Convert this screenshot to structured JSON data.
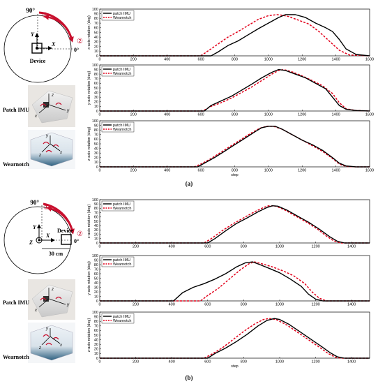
{
  "panels": [
    {
      "label": "(a)",
      "diagram": {
        "angle_top": "90°",
        "angle_right": "0°",
        "step1": "①",
        "step2": "②",
        "axis_y": "Y",
        "axis_x": "X",
        "axis_z": "",
        "device": "Device",
        "distance": ""
      },
      "photo_labels": {
        "patch": "Patch IMU",
        "wearnotch": "Wearnotch",
        "x": "x",
        "y": "y",
        "z": "z"
      }
    },
    {
      "label": "(b)",
      "diagram": {
        "angle_top": "90°",
        "angle_right": "0°",
        "step1": "①",
        "step2": "②",
        "axis_y": "Y",
        "axis_x": "X",
        "axis_z": "Z",
        "device": "Device",
        "distance": "30 cm"
      },
      "photo_labels": {
        "patch": "Patch IMU",
        "wearnotch": "Wearnotch",
        "x": "x",
        "y": "y",
        "z": "z"
      }
    }
  ],
  "colors": {
    "patch": "#000000",
    "wearnotch": "#e2001a",
    "arrow": "#c8102e",
    "axis": "#000000"
  },
  "chart_data": [
    {
      "type": "line",
      "panel": "(a)",
      "xlabel": "",
      "ylabel": "x-axis rotation (deg)",
      "xlim": [
        0,
        1600
      ],
      "ylim": [
        0,
        100
      ],
      "xticks": [
        "0",
        "200",
        "400",
        "600",
        "800",
        "1000",
        "1200",
        "1400",
        "1600"
      ],
      "yticks": [
        "0",
        "10",
        "20",
        "30",
        "40",
        "50",
        "60",
        "70",
        "80",
        "90",
        "100"
      ],
      "legend": "top-left",
      "series": [
        {
          "name": "patch IMU",
          "style": "solid",
          "x": [
            0,
            660,
            700,
            760,
            820,
            880,
            940,
            1000,
            1060,
            1100,
            1160,
            1220,
            1280,
            1340,
            1380,
            1420,
            1460,
            1520,
            1600
          ],
          "y": [
            0,
            0,
            8,
            22,
            32,
            45,
            58,
            70,
            82,
            88,
            88,
            82,
            70,
            60,
            52,
            35,
            15,
            3,
            0
          ]
        },
        {
          "name": "Wearnotch",
          "style": "dashed",
          "x": [
            0,
            600,
            640,
            700,
            760,
            820,
            880,
            940,
            1000,
            1050,
            1080,
            1120,
            1180,
            1240,
            1300,
            1360,
            1420,
            1480,
            1600
          ],
          "y": [
            0,
            0,
            10,
            25,
            40,
            52,
            65,
            78,
            86,
            88,
            87,
            84,
            76,
            68,
            52,
            32,
            12,
            2,
            0
          ]
        }
      ]
    },
    {
      "type": "line",
      "panel": "(a)",
      "xlabel": "",
      "ylabel": "y-axis rotation (deg)",
      "xlim": [
        0,
        1600
      ],
      "ylim": [
        0,
        100
      ],
      "xticks": [
        "0",
        "200",
        "400",
        "600",
        "800",
        "1000",
        "1200",
        "1400",
        "1600"
      ],
      "yticks": [
        "0",
        "10",
        "20",
        "30",
        "40",
        "50",
        "60",
        "70",
        "80",
        "90",
        "100"
      ],
      "legend": "top-left",
      "series": [
        {
          "name": "patch IMU",
          "style": "solid",
          "x": [
            0,
            620,
            660,
            720,
            780,
            840,
            900,
            960,
            1020,
            1060,
            1100,
            1160,
            1220,
            1280,
            1340,
            1380,
            1420,
            1460,
            1520,
            1600
          ],
          "y": [
            0,
            0,
            12,
            22,
            32,
            45,
            58,
            72,
            84,
            90,
            88,
            80,
            72,
            60,
            48,
            30,
            12,
            4,
            1,
            0
          ]
        },
        {
          "name": "Wearnotch",
          "style": "dashed",
          "x": [
            0,
            610,
            660,
            720,
            780,
            840,
            900,
            960,
            1020,
            1060,
            1090,
            1140,
            1200,
            1260,
            1320,
            1380,
            1420,
            1460,
            1520,
            1600
          ],
          "y": [
            0,
            0,
            10,
            18,
            28,
            40,
            52,
            66,
            80,
            88,
            90,
            85,
            76,
            66,
            55,
            38,
            18,
            5,
            1,
            0
          ]
        }
      ]
    },
    {
      "type": "line",
      "panel": "(a)",
      "xlabel": "step",
      "ylabel": "z-axis rotation (deg)",
      "xlim": [
        0,
        1600
      ],
      "ylim": [
        0,
        100
      ],
      "xticks": [
        "0",
        "200",
        "400",
        "600",
        "800",
        "1000",
        "1200",
        "1400",
        "1600"
      ],
      "yticks": [
        "0",
        "10",
        "20",
        "30",
        "40",
        "50",
        "60",
        "70",
        "80",
        "90",
        "100"
      ],
      "legend": "top-left",
      "series": [
        {
          "name": "patch IMU",
          "style": "solid",
          "x": [
            0,
            580,
            620,
            680,
            740,
            800,
            860,
            920,
            960,
            1000,
            1040,
            1080,
            1140,
            1200,
            1260,
            1320,
            1380,
            1420,
            1460,
            1520,
            1600
          ],
          "y": [
            0,
            0,
            8,
            20,
            34,
            48,
            62,
            76,
            85,
            88,
            88,
            82,
            70,
            58,
            48,
            36,
            20,
            8,
            2,
            0,
            0
          ]
        },
        {
          "name": "Wearnotch",
          "style": "dashed",
          "x": [
            0,
            560,
            600,
            660,
            720,
            780,
            840,
            900,
            950,
            990,
            1030,
            1080,
            1140,
            1200,
            1260,
            1320,
            1380,
            1420,
            1460,
            1520,
            1600
          ],
          "y": [
            0,
            0,
            6,
            18,
            32,
            46,
            60,
            74,
            84,
            88,
            88,
            82,
            70,
            58,
            46,
            34,
            18,
            6,
            1,
            0,
            0
          ]
        }
      ]
    },
    {
      "type": "line",
      "panel": "(b)",
      "xlabel": "",
      "ylabel": "x-axis rotation (deg)",
      "xlim": [
        0,
        1500
      ],
      "ylim": [
        0,
        100
      ],
      "xticks": [
        "0",
        "200",
        "400",
        "600",
        "800",
        "1000",
        "1200",
        "1400"
      ],
      "yticks": [
        "0",
        "10",
        "20",
        "30",
        "40",
        "50",
        "60",
        "70",
        "80",
        "90",
        "100"
      ],
      "legend": "top-left",
      "series": [
        {
          "name": "patch IMU",
          "style": "solid",
          "x": [
            0,
            600,
            640,
            700,
            760,
            820,
            880,
            930,
            960,
            990,
            1040,
            1100,
            1160,
            1220,
            1280,
            1320,
            1360,
            1500
          ],
          "y": [
            0,
            0,
            10,
            28,
            45,
            58,
            72,
            82,
            86,
            85,
            76,
            62,
            48,
            32,
            14,
            4,
            0,
            0
          ]
        },
        {
          "name": "Wearnotch",
          "style": "dashed",
          "x": [
            0,
            580,
            620,
            680,
            740,
            800,
            860,
            910,
            940,
            980,
            1030,
            1090,
            1150,
            1210,
            1260,
            1300,
            1340,
            1500
          ],
          "y": [
            0,
            0,
            10,
            28,
            44,
            58,
            72,
            82,
            86,
            85,
            76,
            62,
            48,
            32,
            16,
            5,
            0,
            0
          ]
        }
      ]
    },
    {
      "type": "line",
      "panel": "(b)",
      "xlabel": "",
      "ylabel": "y-axis rotation (deg)",
      "xlim": [
        0,
        1500
      ],
      "ylim": [
        0,
        100
      ],
      "xticks": [
        "0",
        "200",
        "400",
        "600",
        "800",
        "1000",
        "1200",
        "1400"
      ],
      "yticks": [
        "0",
        "10",
        "20",
        "30",
        "40",
        "50",
        "60",
        "70",
        "80",
        "90",
        "100"
      ],
      "legend": "top-left",
      "series": [
        {
          "name": "patch IMU",
          "style": "solid",
          "x": [
            0,
            410,
            460,
            520,
            580,
            640,
            700,
            760,
            810,
            850,
            890,
            940,
            1000,
            1060,
            1120,
            1160,
            1200,
            1240,
            1500
          ],
          "y": [
            0,
            0,
            18,
            30,
            38,
            48,
            60,
            75,
            84,
            86,
            80,
            72,
            62,
            48,
            32,
            15,
            4,
            0,
            0
          ]
        },
        {
          "name": "Wearnotch",
          "style": "dashed",
          "x": [
            0,
            560,
            600,
            660,
            720,
            780,
            830,
            860,
            900,
            960,
            1020,
            1080,
            1140,
            1180,
            1220,
            1260,
            1500
          ],
          "y": [
            0,
            0,
            12,
            28,
            48,
            68,
            82,
            86,
            82,
            75,
            66,
            55,
            38,
            20,
            6,
            0,
            0
          ]
        }
      ]
    },
    {
      "type": "line",
      "panel": "(b)",
      "xlabel": "step",
      "ylabel": "z-axis rotation (deg)",
      "xlim": [
        0,
        1500
      ],
      "ylim": [
        0,
        100
      ],
      "xticks": [
        "0",
        "200",
        "400",
        "600",
        "800",
        "1000",
        "1200",
        "1400"
      ],
      "yticks": [
        "0",
        "10",
        "20",
        "30",
        "40",
        "50",
        "60",
        "70",
        "80",
        "90",
        "100"
      ],
      "legend": "top-left",
      "series": [
        {
          "name": "patch IMU",
          "style": "solid",
          "x": [
            0,
            600,
            640,
            700,
            760,
            820,
            880,
            930,
            970,
            1000,
            1050,
            1110,
            1170,
            1230,
            1280,
            1320,
            1360,
            1500
          ],
          "y": [
            0,
            0,
            10,
            22,
            36,
            52,
            70,
            82,
            86,
            84,
            74,
            58,
            42,
            26,
            12,
            3,
            0,
            0
          ]
        },
        {
          "name": "Wearnotch",
          "style": "dashed",
          "x": [
            0,
            580,
            620,
            680,
            740,
            800,
            860,
            910,
            940,
            980,
            1040,
            1100,
            1160,
            1220,
            1270,
            1310,
            1340,
            1500
          ],
          "y": [
            0,
            0,
            8,
            22,
            40,
            58,
            74,
            84,
            86,
            84,
            72,
            56,
            40,
            24,
            10,
            2,
            0,
            0
          ]
        }
      ]
    }
  ]
}
